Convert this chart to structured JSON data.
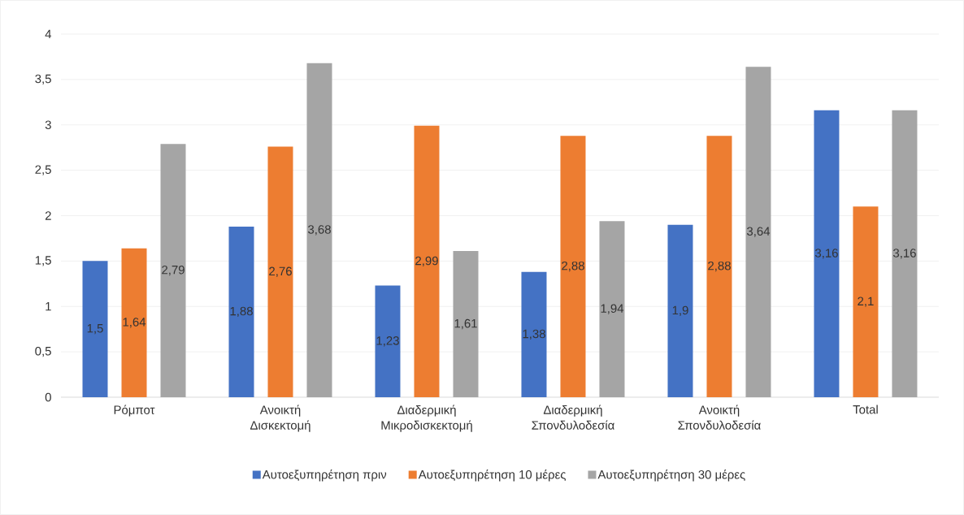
{
  "chart_data": {
    "type": "bar",
    "categories": [
      "Ρόμποτ",
      "Ανοικτή Δισκεκτομή",
      "Διαδερμική Μικροδισκεκτομή",
      "Διαδερμική Σπονδυλοδεσία",
      "Ανοικτή Σπονδυλοδεσία",
      "Total"
    ],
    "series": [
      {
        "name": "Αυτοεξυπηρέτηση πριν",
        "color": "#4472c4",
        "values": [
          1.5,
          1.88,
          1.23,
          1.38,
          1.9,
          3.16
        ]
      },
      {
        "name": "Αυτοεξυπηρέτηση 10 μέρες",
        "color": "#ed7d31",
        "values": [
          1.64,
          2.76,
          2.99,
          2.88,
          2.88,
          2.1
        ]
      },
      {
        "name": "Αυτοεξυπηρέτηση 30 μέρες",
        "color": "#a5a5a5",
        "values": [
          2.79,
          3.68,
          1.61,
          1.94,
          3.64,
          3.16
        ]
      }
    ],
    "ylim": [
      0,
      4
    ],
    "yticks": [
      0,
      {
        "value": 0.5,
        "label": "0,5"
      },
      1,
      {
        "value": 1.5,
        "label": "1,5"
      },
      2,
      {
        "value": 2.5,
        "label": "2,5"
      },
      3,
      {
        "value": 3.5,
        "label": "3,5"
      },
      4
    ],
    "value_labels": [
      [
        "1,5",
        "1,88",
        "1,23",
        "1,38",
        "1,9",
        "3,16"
      ],
      [
        "1,64",
        "2,76",
        "2,99",
        "2,88",
        "2,88",
        "2,1"
      ],
      [
        "2,79",
        "3,68",
        "1,61",
        "1,94",
        "3,64",
        "3,16"
      ]
    ],
    "grid": "y",
    "legend": "bottom"
  }
}
